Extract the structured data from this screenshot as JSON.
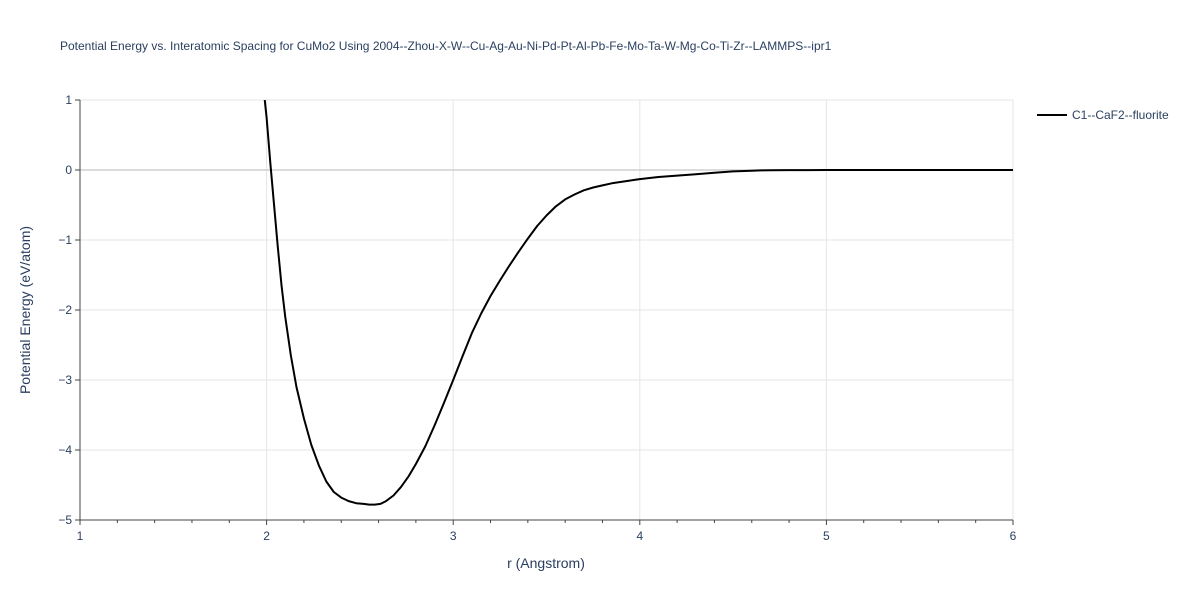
{
  "chart_data": {
    "type": "line",
    "title": "Potential Energy vs. Interatomic Spacing for CuMo2 Using 2004--Zhou-X-W--Cu-Ag-Au-Ni-Pd-Pt-Al-Pb-Fe-Mo-Ta-W-Mg-Co-Ti-Zr--LAMMPS--ipr1",
    "xlabel": "r (Angstrom)",
    "ylabel": "Potential Energy (eV/atom)",
    "xlim": [
      1,
      6
    ],
    "ylim": [
      -5,
      1
    ],
    "x_ticks": [
      1,
      2,
      3,
      4,
      5,
      6
    ],
    "x_tick_labels": [
      "1",
      "2",
      "3",
      "4",
      "5",
      "6"
    ],
    "y_ticks": [
      -5,
      -4,
      -3,
      -2,
      -1,
      0,
      1
    ],
    "y_tick_labels": [
      "−5",
      "−4",
      "−3",
      "−2",
      "−1",
      "0",
      "1"
    ],
    "grid": true,
    "legend_position": "top-right",
    "series": [
      {
        "name": "C1--CaF2--fluorite",
        "color": "#000000",
        "x": [
          1.99,
          2.0,
          2.02,
          2.04,
          2.06,
          2.08,
          2.1,
          2.13,
          2.16,
          2.2,
          2.24,
          2.28,
          2.32,
          2.36,
          2.4,
          2.44,
          2.48,
          2.52,
          2.55,
          2.58,
          2.61,
          2.64,
          2.68,
          2.72,
          2.76,
          2.8,
          2.85,
          2.9,
          2.95,
          3.0,
          3.05,
          3.1,
          3.15,
          3.2,
          3.25,
          3.3,
          3.35,
          3.4,
          3.45,
          3.5,
          3.55,
          3.6,
          3.65,
          3.7,
          3.75,
          3.8,
          3.85,
          3.9,
          3.95,
          4.0,
          4.1,
          4.2,
          4.3,
          4.4,
          4.5,
          4.6,
          4.65,
          4.7,
          4.8,
          4.9,
          5.0,
          5.2,
          5.4,
          5.6,
          5.8,
          6.0
        ],
        "y": [
          1.0,
          0.75,
          0.1,
          -0.5,
          -1.1,
          -1.65,
          -2.1,
          -2.65,
          -3.1,
          -3.55,
          -3.93,
          -4.22,
          -4.45,
          -4.6,
          -4.68,
          -4.73,
          -4.76,
          -4.77,
          -4.78,
          -4.78,
          -4.77,
          -4.73,
          -4.65,
          -4.53,
          -4.38,
          -4.2,
          -3.95,
          -3.65,
          -3.33,
          -3.0,
          -2.66,
          -2.33,
          -2.05,
          -1.8,
          -1.58,
          -1.37,
          -1.17,
          -0.98,
          -0.8,
          -0.65,
          -0.52,
          -0.42,
          -0.35,
          -0.29,
          -0.25,
          -0.22,
          -0.19,
          -0.17,
          -0.15,
          -0.13,
          -0.1,
          -0.08,
          -0.06,
          -0.04,
          -0.02,
          -0.01,
          -0.005,
          -0.003,
          -0.002,
          -0.001,
          0.0,
          0.0,
          0.0,
          0.0,
          0.0,
          0.0
        ]
      }
    ]
  }
}
